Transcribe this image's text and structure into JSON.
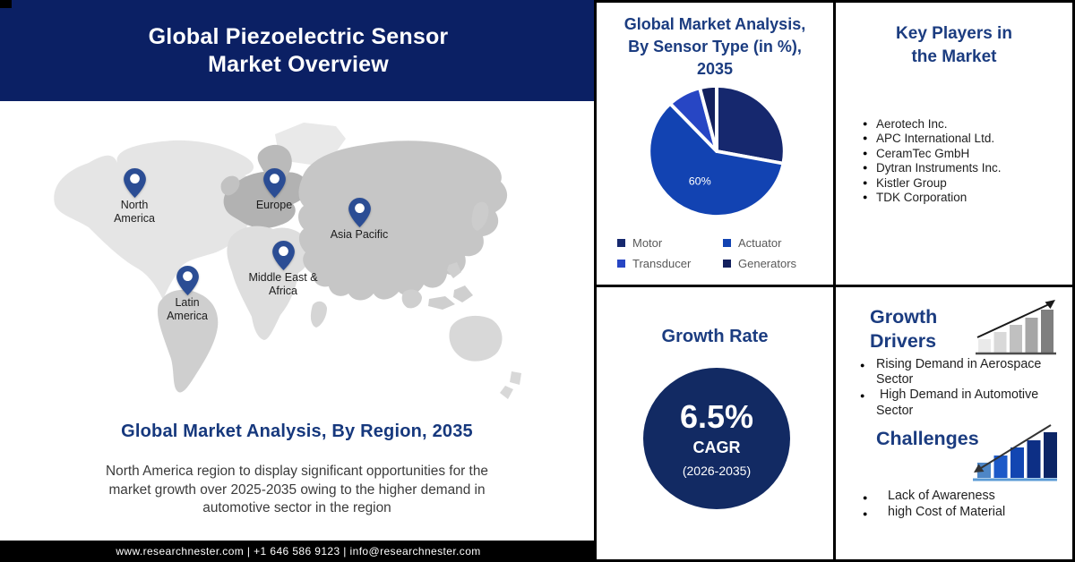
{
  "banner": {
    "title_line1": "Global Piezoelectric Sensor",
    "title_line2": "Market Overview"
  },
  "map": {
    "regions": [
      {
        "id": "north-america",
        "label": "North America"
      },
      {
        "id": "europe",
        "label": "Europe"
      },
      {
        "id": "asia-pacific",
        "label": "Asia Pacific"
      },
      {
        "id": "middle-east-africa",
        "label": "Middle East & Africa"
      },
      {
        "id": "latin-america",
        "label": "Latin America"
      }
    ]
  },
  "region_section": {
    "heading": "Global Market Analysis, By Region, 2035",
    "description": "North America region to display significant opportunities for the market growth over 2025-2035 owing to the higher demand in automotive sector in the region"
  },
  "footer": {
    "text": "www.researchnester.com | +1 646 586 9123 | info@researchnester.com"
  },
  "chart_data": {
    "type": "pie",
    "title": "Global Market Analysis, By Sensor Type (in %), 2035",
    "title_lines": [
      "Global Market Analysis,",
      "By Sensor Type (in %),",
      "2035"
    ],
    "labels": [
      "Motor",
      "Actuator",
      "Transducer",
      "Generators"
    ],
    "values": [
      28,
      60,
      8,
      4
    ],
    "colors": [
      "#16286e",
      "#1243b2",
      "#2746c4",
      "#13205e"
    ],
    "data_labels": [
      "",
      "60%",
      "",
      ""
    ],
    "legend_position": "bottom",
    "start_angle_deg": 0,
    "unit": "%"
  },
  "growth_rate": {
    "heading": "Growth Rate",
    "value": "6.5%",
    "label": "CAGR",
    "period": "(2026-2035)"
  },
  "key_players": {
    "heading_line1": "Key Players in",
    "heading_line2": "the Market",
    "items": [
      "Aerotech Inc.",
      "APC International Ltd.",
      "CeramTec GmbH",
      "Dytran Instruments Inc.",
      "Kistler Group",
      "TDK Corporation"
    ]
  },
  "growth_drivers": {
    "heading": "Growth Drivers",
    "items": [
      "Rising Demand in Aerospace Sector",
      " High Demand in Automotive Sector"
    ]
  },
  "challenges": {
    "heading": "Challenges",
    "items": [
      "Lack of Awareness",
      "high Cost of Material"
    ]
  },
  "colors": {
    "banner_navy": "#0b2064",
    "heading_navy": "#1b3c80",
    "growth_circle_navy": "#122a63",
    "pin": "#2b4d94",
    "footer_black": "#000000",
    "legend_text_gray": "#595959"
  }
}
